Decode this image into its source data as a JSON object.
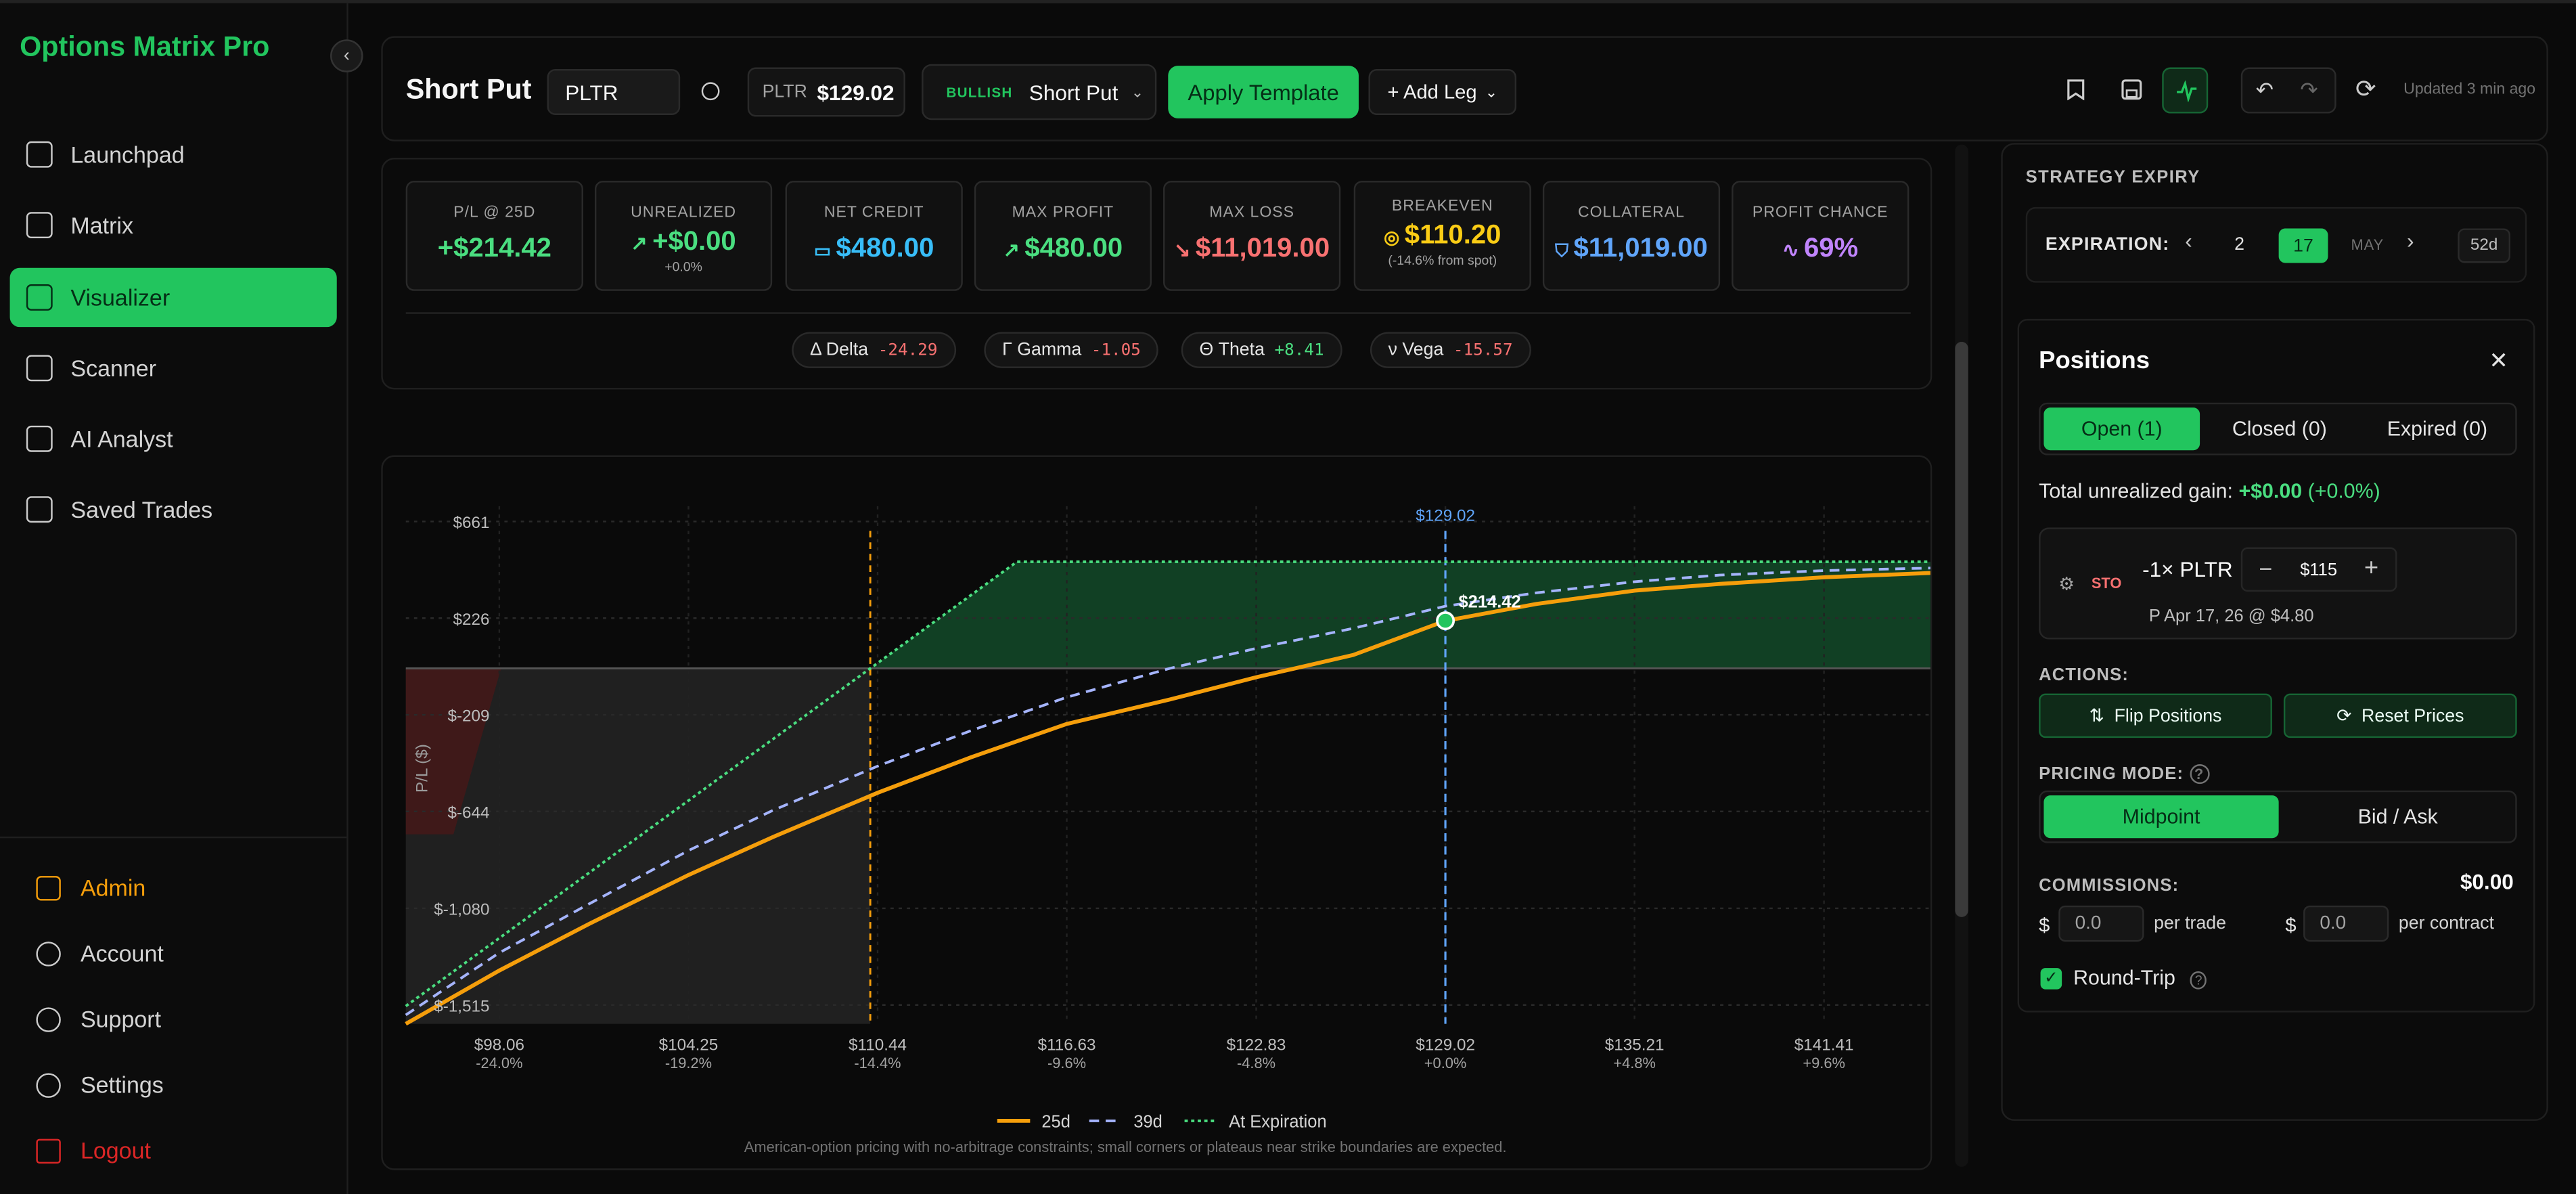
{
  "app": {
    "title": "Options Matrix Pro"
  },
  "sidebar": {
    "items": [
      {
        "label": "Launchpad",
        "icon": "grid-icon"
      },
      {
        "label": "Matrix",
        "icon": "bar-chart-icon"
      },
      {
        "label": "Visualizer",
        "icon": "line-chart-icon",
        "active": true
      },
      {
        "label": "Scanner",
        "icon": "scan-icon"
      },
      {
        "label": "AI Analyst",
        "icon": "brain-icon"
      },
      {
        "label": "Saved Trades",
        "icon": "bookmark-icon"
      }
    ],
    "bottom": [
      {
        "label": "Admin",
        "icon": "shield-icon"
      },
      {
        "label": "Account",
        "icon": "user-icon"
      },
      {
        "label": "Support",
        "icon": "help-icon"
      },
      {
        "label": "Settings",
        "icon": "gear-icon"
      },
      {
        "label": "Logout",
        "icon": "logout-icon"
      }
    ]
  },
  "toolbar": {
    "title": "Short Put",
    "symbol": "PLTR",
    "price_symbol": "PLTR",
    "price": "$129.02",
    "sentiment": "BULLISH",
    "strategy": "Short Put",
    "apply_label": "Apply Template",
    "add_leg_label": "+ Add Leg",
    "updated": "Updated 3 min ago"
  },
  "stats": [
    {
      "label": "P/L @ 25D",
      "value": "+$214.42",
      "color": "#4ade80",
      "icon": ""
    },
    {
      "label": "UNREALIZED",
      "value": "+$0.00",
      "sub": "+0.0%",
      "color": "#4ade80",
      "icon": "↗"
    },
    {
      "label": "NET CREDIT",
      "value": "$480.00",
      "color": "#38bdf8",
      "icon": "▭"
    },
    {
      "label": "MAX PROFIT",
      "value": "$480.00",
      "color": "#4ade80",
      "icon": "↗"
    },
    {
      "label": "MAX LOSS",
      "value": "$11,019.00",
      "color": "#f87171",
      "icon": "↘"
    },
    {
      "label": "BREAKEVEN",
      "value": "$110.20",
      "sub": "(-14.6% from spot)",
      "color": "#facc15",
      "icon": "◎"
    },
    {
      "label": "COLLATERAL",
      "value": "$11,019.00",
      "color": "#60a5fa",
      "icon": "⛉"
    },
    {
      "label": "PROFIT CHANCE",
      "value": "69%",
      "color": "#c084fc",
      "icon": "∿"
    }
  ],
  "greeks": [
    {
      "label": "Δ Delta",
      "value": "-24.29",
      "color": "#f87171"
    },
    {
      "label": "Γ Gamma",
      "value": "-1.05",
      "color": "#f87171"
    },
    {
      "label": "Θ Theta",
      "value": "+8.41",
      "color": "#4ade80"
    },
    {
      "label": "ν Vega",
      "value": "-15.57",
      "color": "#f87171"
    }
  ],
  "chart_data": {
    "type": "line",
    "ylabel": "P/L ($)",
    "yticks": [
      "$661",
      "$226",
      "$-209",
      "$-644",
      "$-1,080",
      "$-1,515"
    ],
    "ytick_values": [
      661,
      226,
      -209,
      -644,
      -1080,
      -1515
    ],
    "xticks": [
      {
        "price": "$98.06",
        "pct": "-24.0%"
      },
      {
        "price": "$104.25",
        "pct": "-19.2%"
      },
      {
        "price": "$110.44",
        "pct": "-14.4%"
      },
      {
        "price": "$116.63",
        "pct": "-9.6%"
      },
      {
        "price": "$122.83",
        "pct": "-4.8%"
      },
      {
        "price": "$129.02",
        "pct": "+0.0%"
      },
      {
        "price": "$135.21",
        "pct": "+4.8%"
      },
      {
        "price": "$141.41",
        "pct": "+9.6%"
      }
    ],
    "xtick_values": [
      98.06,
      104.25,
      110.44,
      116.63,
      122.83,
      129.02,
      135.21,
      141.41
    ],
    "xlim": [
      95.0,
      145.0
    ],
    "ylim": [
      -1600,
      730
    ],
    "spot": 129.02,
    "spot_label": "$129.02",
    "breakeven": 110.2,
    "marker": {
      "x": 129.02,
      "y": 214.42,
      "label": "$214.42"
    },
    "series": [
      {
        "name": "25d",
        "color": "#f59e0b",
        "dash": "",
        "x": [
          95,
          98.06,
          101,
          104.25,
          107,
          110.44,
          113.5,
          116.63,
          120,
          122.83,
          126,
          129.02,
          132,
          135.21,
          138,
          141.41,
          145
        ],
        "y": [
          -1600,
          -1360,
          -1150,
          -930,
          -760,
          -560,
          -400,
          -250,
          -140,
          -40,
          60,
          214,
          290,
          350,
          380,
          410,
          430
        ]
      },
      {
        "name": "39d",
        "color": "#a5b4fc",
        "dash": "6 4",
        "x": [
          95,
          98.06,
          101,
          104.25,
          107,
          110.44,
          113.5,
          116.63,
          120,
          122.83,
          126,
          129.02,
          132,
          135.21,
          138,
          141.41,
          145
        ],
        "y": [
          -1560,
          -1280,
          -1060,
          -820,
          -640,
          -440,
          -280,
          -130,
          0,
          90,
          180,
          280,
          340,
          390,
          420,
          440,
          452
        ]
      },
      {
        "name": "At Expiration",
        "color": "#4ade80",
        "dash": "2 2",
        "x": [
          95,
          110.2,
          115,
          145
        ],
        "y": [
          -1520,
          0,
          480,
          480
        ]
      }
    ],
    "footnote": "American-option pricing with no-arbitrage constraints; small corners or plateaus near strike boundaries are expected."
  },
  "expiry": {
    "header": "STRATEGY EXPIRY",
    "label": "EXPIRATION:",
    "dates": [
      "2",
      "17"
    ],
    "selected": "17",
    "month": "MAY",
    "days": "52d"
  },
  "positions": {
    "title": "Positions",
    "tabs": [
      "Open (1)",
      "Closed (0)",
      "Expired (0)"
    ],
    "total_label": "Total unrealized gain:",
    "total_value": "+$0.00",
    "total_pct": "(+0.0%)",
    "leg": {
      "action": "STO",
      "qty_symbol": "-1× PLTR",
      "strike": "$115",
      "detail": "P Apr 17, 26 @ $4.80"
    },
    "actions_label": "ACTIONS:",
    "flip_label": "Flip Positions",
    "reset_label": "Reset Prices",
    "pricing_label": "PRICING MODE:",
    "pricing_modes": [
      "Midpoint",
      "Bid / Ask"
    ],
    "commissions_label": "COMMISSIONS:",
    "commissions_total": "$0.00",
    "per_trade_value": "0.0",
    "per_trade_label": "per trade",
    "per_contract_value": "0.0",
    "per_contract_label": "per contract",
    "roundtrip_label": "Round-Trip"
  }
}
